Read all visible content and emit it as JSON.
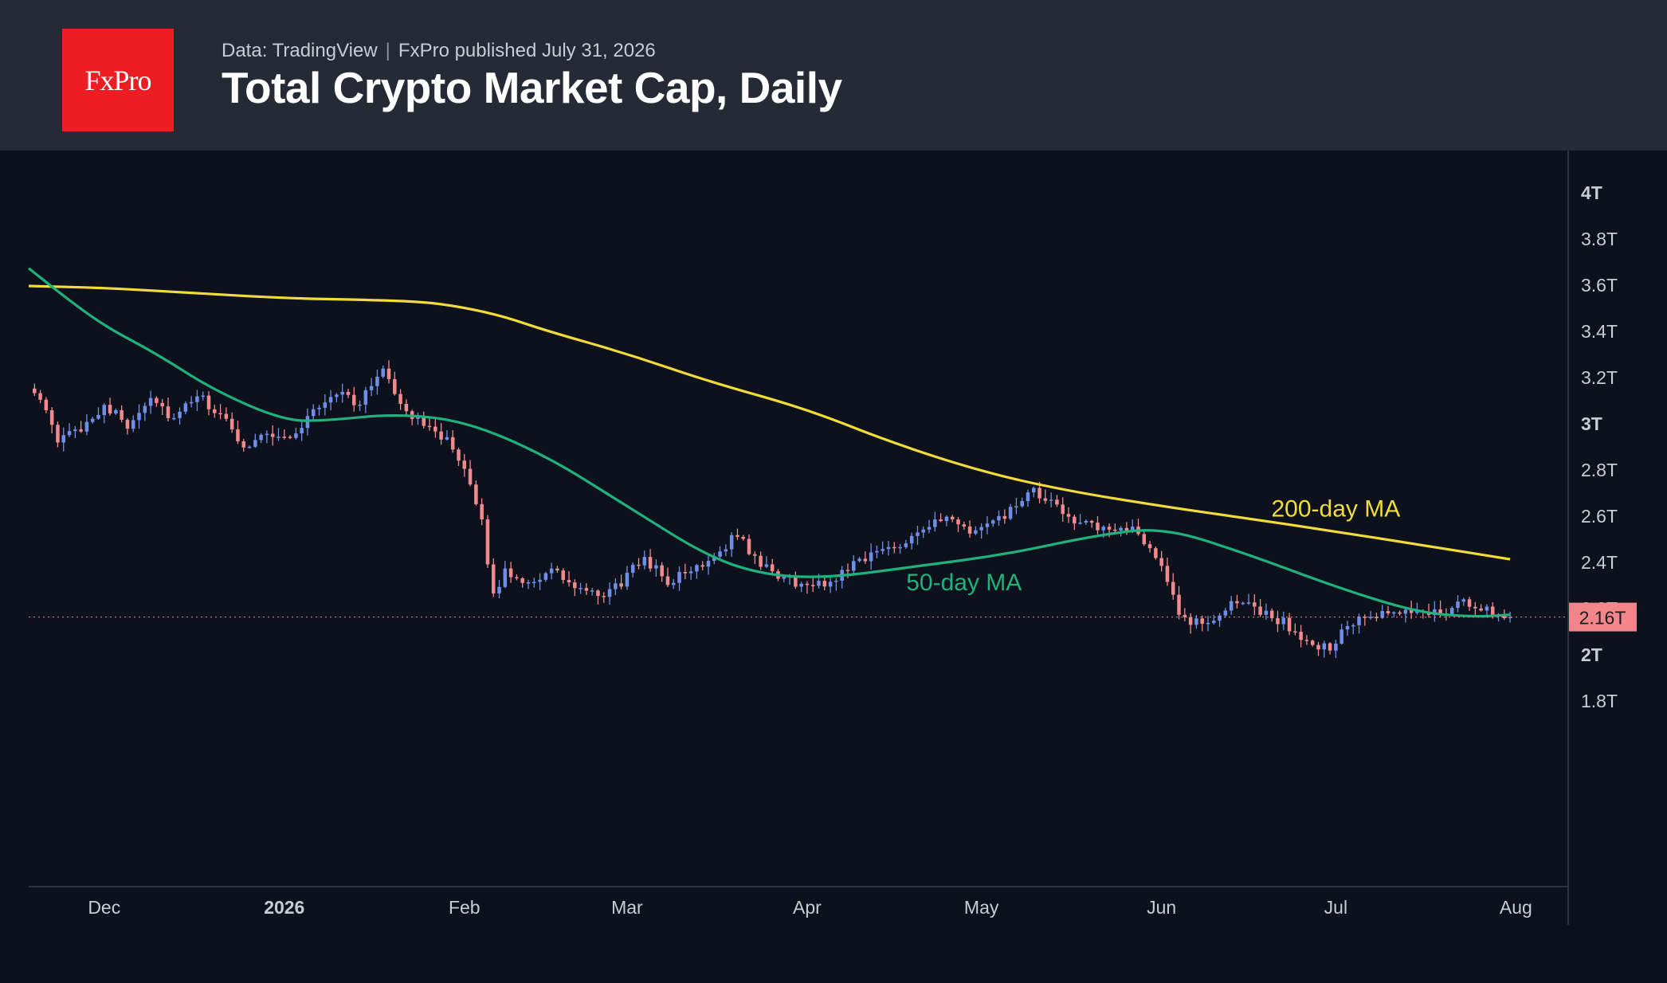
{
  "header": {
    "logo_text": "FxPro",
    "source": "Data: TradingView",
    "published": "FxPro published July 31, 2026",
    "title": "Total Crypto Market Cap, Daily"
  },
  "colors": {
    "header_bg": "#262a35",
    "chart_bg": "#0c111c",
    "logo_bg": "#ee1d23",
    "up_candle": "#6f8ee8",
    "down_candle": "#f08a8d",
    "ma200": "#f2dc3a",
    "ma50": "#1fb27c",
    "last_price_bg": "#f4868b"
  },
  "chart_data": {
    "type": "candlestick",
    "title": "Total Crypto Market Cap, Daily",
    "y_unit": "T",
    "ylim": [
      1.8,
      4.1
    ],
    "y_ticks": [
      {
        "value": 4.0,
        "label": "4T",
        "bold": true
      },
      {
        "value": 3.8,
        "label": "3.8T",
        "bold": false
      },
      {
        "value": 3.6,
        "label": "3.6T",
        "bold": false
      },
      {
        "value": 3.4,
        "label": "3.4T",
        "bold": false
      },
      {
        "value": 3.2,
        "label": "3.2T",
        "bold": false
      },
      {
        "value": 3.0,
        "label": "3T",
        "bold": true
      },
      {
        "value": 2.8,
        "label": "2.8T",
        "bold": false
      },
      {
        "value": 2.6,
        "label": "2.6T",
        "bold": false
      },
      {
        "value": 2.4,
        "label": "2.4T",
        "bold": false
      },
      {
        "value": 2.2,
        "label": "2.2T",
        "bold": false
      },
      {
        "value": 2.0,
        "label": "2T",
        "bold": true
      },
      {
        "value": 1.8,
        "label": "1.8T",
        "bold": false
      }
    ],
    "x_ticks": [
      {
        "date": "2025-12-01",
        "label": "Dec",
        "bold": false
      },
      {
        "date": "2026-01-01",
        "label": "2026",
        "bold": true
      },
      {
        "date": "2026-02-01",
        "label": "Feb",
        "bold": false
      },
      {
        "date": "2026-03-01",
        "label": "Mar",
        "bold": false
      },
      {
        "date": "2026-04-01",
        "label": "Apr",
        "bold": false
      },
      {
        "date": "2026-05-01",
        "label": "May",
        "bold": false
      },
      {
        "date": "2026-06-01",
        "label": "Jun",
        "bold": false
      },
      {
        "date": "2026-07-01",
        "label": "Jul",
        "bold": false
      },
      {
        "date": "2026-08-01",
        "label": "Aug",
        "bold": false
      }
    ],
    "x_range": [
      "2025-11-18",
      "2026-08-10"
    ],
    "last_price": {
      "value": 2.16,
      "label": "2.16T"
    },
    "price_close": [
      [
        "2025-11-19",
        3.15
      ],
      [
        "2025-11-23",
        2.92
      ],
      [
        "2025-11-27",
        2.98
      ],
      [
        "2025-12-01",
        3.08
      ],
      [
        "2025-12-05",
        2.99
      ],
      [
        "2025-12-09",
        3.12
      ],
      [
        "2025-12-13",
        3.01
      ],
      [
        "2025-12-17",
        3.12
      ],
      [
        "2025-12-21",
        3.03
      ],
      [
        "2025-12-25",
        2.9
      ],
      [
        "2025-12-29",
        2.96
      ],
      [
        "2026-01-02",
        2.93
      ],
      [
        "2026-01-06",
        3.05
      ],
      [
        "2026-01-10",
        3.14
      ],
      [
        "2026-01-14",
        3.08
      ],
      [
        "2026-01-18",
        3.25
      ],
      [
        "2026-01-22",
        3.03
      ],
      [
        "2026-01-26",
        3.0
      ],
      [
        "2026-01-29",
        2.92
      ],
      [
        "2026-02-01",
        2.78
      ],
      [
        "2026-02-04",
        2.58
      ],
      [
        "2026-02-06",
        2.24
      ],
      [
        "2026-02-08",
        2.36
      ],
      [
        "2026-02-12",
        2.31
      ],
      [
        "2026-02-16",
        2.36
      ],
      [
        "2026-02-20",
        2.29
      ],
      [
        "2026-02-24",
        2.24
      ],
      [
        "2026-02-28",
        2.31
      ],
      [
        "2026-03-04",
        2.42
      ],
      [
        "2026-03-08",
        2.31
      ],
      [
        "2026-03-12",
        2.36
      ],
      [
        "2026-03-16",
        2.43
      ],
      [
        "2026-03-20",
        2.52
      ],
      [
        "2026-03-24",
        2.38
      ],
      [
        "2026-03-28",
        2.33
      ],
      [
        "2026-04-01",
        2.29
      ],
      [
        "2026-04-05",
        2.31
      ],
      [
        "2026-04-09",
        2.4
      ],
      [
        "2026-04-13",
        2.44
      ],
      [
        "2026-04-17",
        2.48
      ],
      [
        "2026-04-21",
        2.55
      ],
      [
        "2026-04-25",
        2.58
      ],
      [
        "2026-04-29",
        2.53
      ],
      [
        "2026-05-03",
        2.56
      ],
      [
        "2026-05-07",
        2.64
      ],
      [
        "2026-05-10",
        2.7
      ],
      [
        "2026-05-14",
        2.63
      ],
      [
        "2026-05-18",
        2.57
      ],
      [
        "2026-05-22",
        2.53
      ],
      [
        "2026-05-26",
        2.55
      ],
      [
        "2026-05-30",
        2.47
      ],
      [
        "2026-06-02",
        2.33
      ],
      [
        "2026-06-04",
        2.15
      ],
      [
        "2026-06-08",
        2.13
      ],
      [
        "2026-06-12",
        2.19
      ],
      [
        "2026-06-15",
        2.24
      ],
      [
        "2026-06-18",
        2.18
      ],
      [
        "2026-06-22",
        2.14
      ],
      [
        "2026-06-26",
        2.04
      ],
      [
        "2026-06-30",
        2.03
      ],
      [
        "2026-07-03",
        2.12
      ],
      [
        "2026-07-07",
        2.16
      ],
      [
        "2026-07-11",
        2.17
      ],
      [
        "2026-07-15",
        2.19
      ],
      [
        "2026-07-19",
        2.18
      ],
      [
        "2026-07-23",
        2.22
      ],
      [
        "2026-07-27",
        2.19
      ],
      [
        "2026-07-31",
        2.16
      ]
    ],
    "series": [
      {
        "name": "200-day MA",
        "color": "#f2dc3a",
        "points": [
          [
            "2025-11-18",
            3.593
          ],
          [
            "2025-12-01",
            3.585
          ],
          [
            "2025-12-15",
            3.565
          ],
          [
            "2026-01-01",
            3.54
          ],
          [
            "2026-01-15",
            3.533
          ],
          [
            "2026-01-25",
            3.525
          ],
          [
            "2026-02-01",
            3.5
          ],
          [
            "2026-02-08",
            3.46
          ],
          [
            "2026-02-15",
            3.4
          ],
          [
            "2026-03-01",
            3.3
          ],
          [
            "2026-03-15",
            3.18
          ],
          [
            "2026-04-01",
            3.06
          ],
          [
            "2026-04-15",
            2.92
          ],
          [
            "2026-05-01",
            2.79
          ],
          [
            "2026-05-15",
            2.71
          ],
          [
            "2026-06-01",
            2.64
          ],
          [
            "2026-06-15",
            2.59
          ],
          [
            "2026-07-01",
            2.53
          ],
          [
            "2026-07-15",
            2.475
          ],
          [
            "2026-07-31",
            2.41
          ]
        ]
      },
      {
        "name": "50-day MA",
        "color": "#1fb27c",
        "points": [
          [
            "2025-11-18",
            3.67
          ],
          [
            "2025-11-24",
            3.55
          ],
          [
            "2025-12-01",
            3.42
          ],
          [
            "2025-12-10",
            3.3
          ],
          [
            "2025-12-20",
            3.14
          ],
          [
            "2026-01-01",
            3.01
          ],
          [
            "2026-01-08",
            3.01
          ],
          [
            "2026-01-20",
            3.04
          ],
          [
            "2026-02-01",
            3.01
          ],
          [
            "2026-02-15",
            2.86
          ],
          [
            "2026-03-01",
            2.64
          ],
          [
            "2026-03-15",
            2.42
          ],
          [
            "2026-03-25",
            2.34
          ],
          [
            "2026-04-05",
            2.33
          ],
          [
            "2026-04-20",
            2.38
          ],
          [
            "2026-05-05",
            2.43
          ],
          [
            "2026-05-20",
            2.51
          ],
          [
            "2026-06-01",
            2.55
          ],
          [
            "2026-06-15",
            2.44
          ],
          [
            "2026-07-01",
            2.29
          ],
          [
            "2026-07-15",
            2.18
          ],
          [
            "2026-07-25",
            2.16
          ],
          [
            "2026-07-31",
            2.17
          ]
        ]
      }
    ],
    "annotations": [
      {
        "text": "200-day MA",
        "color": "#f2dc3a",
        "date": "2026-07-01",
        "value": 2.63
      },
      {
        "text": "50-day MA",
        "color": "#1fb27c",
        "date": "2026-04-28",
        "value": 2.31
      }
    ]
  }
}
